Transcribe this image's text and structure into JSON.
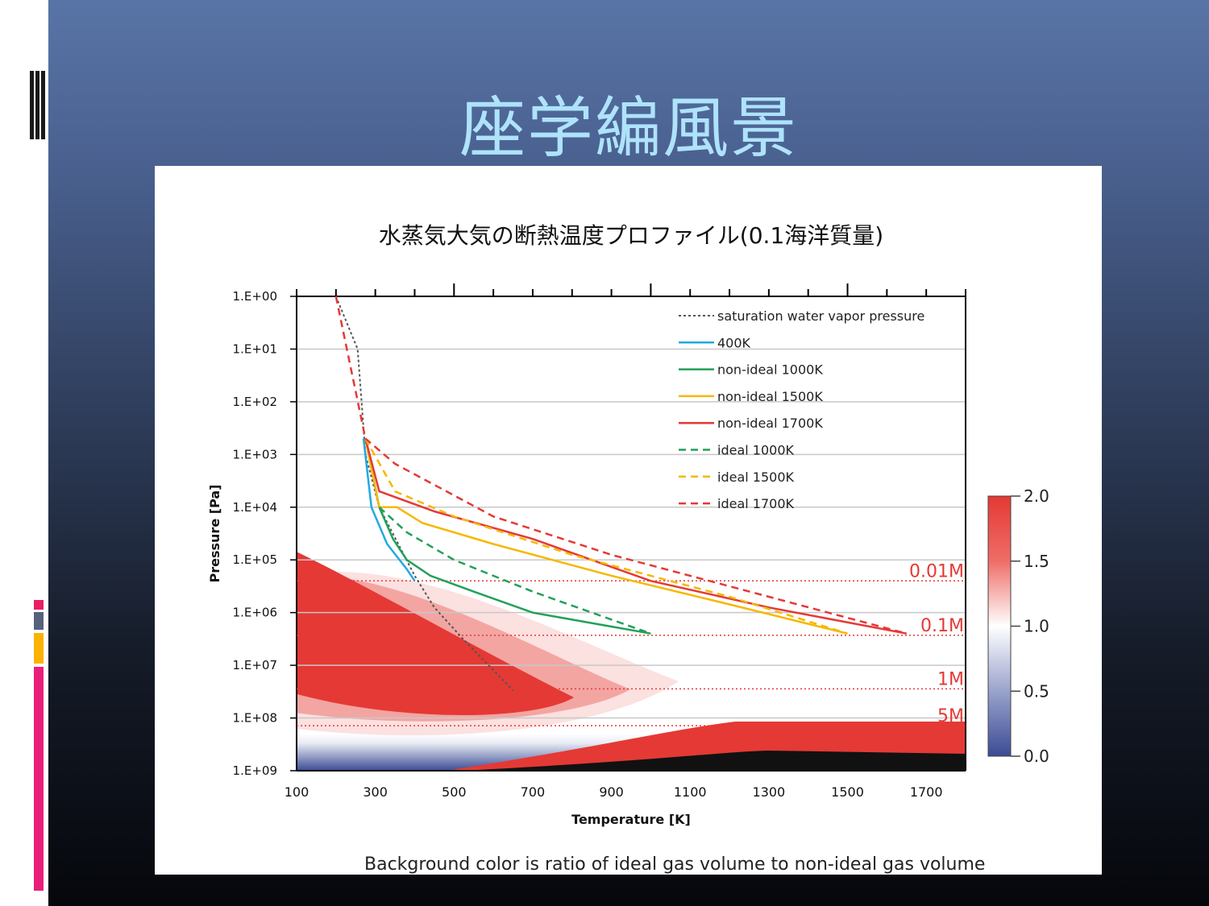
{
  "slide": {
    "title": "座学編風景",
    "colors": {
      "background_top": "#5874a6",
      "background_bottom": "#05070b",
      "title": "#aee3fb"
    }
  },
  "chart_data": {
    "type": "line",
    "title": "水蒸気大気の断熱温度プロファイル(0.1海洋質量)",
    "xlabel": "Temperature [K]",
    "ylabel": "Pressure [Pa]",
    "xlim": [
      100,
      1800
    ],
    "ylim_log10": [
      0,
      9
    ],
    "y_axis": "log, inverted (pressure increases downward)",
    "x_ticks": [
      "100",
      "300",
      "500",
      "700",
      "900",
      "1100",
      "1300",
      "1500",
      "1700"
    ],
    "y_ticks": [
      "1.E+00",
      "1.E+01",
      "1.E+02",
      "1.E+03",
      "1.E+04",
      "1.E+05",
      "1.E+06",
      "1.E+07",
      "1.E+08",
      "1.E+09"
    ],
    "grid": "horizontal",
    "legend_position": "top-right",
    "series": [
      {
        "name": "saturation water vapor pressure",
        "style": "dotted",
        "color": "#555555",
        "points": [
          [
            200,
            1.0
          ],
          [
            255,
            10
          ],
          [
            265,
            100
          ],
          [
            275,
            1000
          ],
          [
            310,
            10000
          ],
          [
            400,
            200000
          ],
          [
            450,
            800000
          ],
          [
            520,
            3000000
          ],
          [
            650,
            30000000
          ]
        ]
      },
      {
        "name": "400K",
        "style": "solid",
        "color": "#22aadd",
        "points": [
          [
            270,
            500
          ],
          [
            290,
            10000
          ],
          [
            330,
            50000
          ],
          [
            380,
            150000
          ],
          [
            400,
            250000
          ]
        ]
      },
      {
        "name": "non-ideal 1000K",
        "style": "solid",
        "color": "#22a05a",
        "points": [
          [
            275,
            500
          ],
          [
            310,
            10000
          ],
          [
            345,
            40000
          ],
          [
            380,
            100000
          ],
          [
            440,
            200000
          ],
          [
            550,
            400000
          ],
          [
            700,
            1000000
          ],
          [
            1000,
            2500000
          ]
        ]
      },
      {
        "name": "non-ideal 1500K",
        "style": "solid",
        "color": "#f5b800",
        "points": [
          [
            275,
            500
          ],
          [
            310,
            10000
          ],
          [
            355,
            10000
          ],
          [
            420,
            20000
          ],
          [
            600,
            50000
          ],
          [
            900,
            200000
          ],
          [
            1200,
            700000
          ],
          [
            1500,
            2500000
          ]
        ]
      },
      {
        "name": "non-ideal 1700K",
        "style": "solid",
        "color": "#e53935",
        "points": [
          [
            275,
            500
          ],
          [
            310,
            5000
          ],
          [
            450,
            12000
          ],
          [
            700,
            40000
          ],
          [
            1000,
            250000
          ],
          [
            1300,
            800000
          ],
          [
            1650,
            2500000
          ]
        ]
      },
      {
        "name": "ideal 1000K",
        "style": "dashed",
        "color": "#22a05a",
        "points": [
          [
            310,
            10000
          ],
          [
            380,
            30000
          ],
          [
            500,
            100000
          ],
          [
            700,
            400000
          ],
          [
            1000,
            2500000
          ]
        ]
      },
      {
        "name": "ideal 1500K",
        "style": "dashed",
        "color": "#f5b800",
        "points": [
          [
            275,
            500
          ],
          [
            350,
            5000
          ],
          [
            500,
            15000
          ],
          [
            800,
            80000
          ],
          [
            1200,
            500000
          ],
          [
            1500,
            2500000
          ]
        ]
      },
      {
        "name": "ideal 1700K",
        "style": "dashed",
        "color": "#e53935",
        "points": [
          [
            200,
            1.0
          ],
          [
            275,
            500
          ],
          [
            350,
            1500
          ],
          [
            600,
            15000
          ],
          [
            900,
            80000
          ],
          [
            1300,
            500000
          ],
          [
            1650,
            2500000
          ]
        ]
      }
    ],
    "reference_lines": [
      {
        "label": "0.01M",
        "pressure": 250000
      },
      {
        "label": "0.1M",
        "pressure": 2700000
      },
      {
        "label": "1M",
        "pressure": 28000000
      },
      {
        "label": "5M",
        "pressure": 140000000
      }
    ],
    "colorbar": {
      "ticks": [
        "2.0",
        "1.5",
        "1.0",
        "0.5",
        "0.0"
      ],
      "colors": {
        "high": "#e53935",
        "mid": "#ffffff",
        "low": "#3b4b94"
      }
    },
    "caption": "Background color is ratio of ideal gas volume to non-ideal gas volume"
  }
}
